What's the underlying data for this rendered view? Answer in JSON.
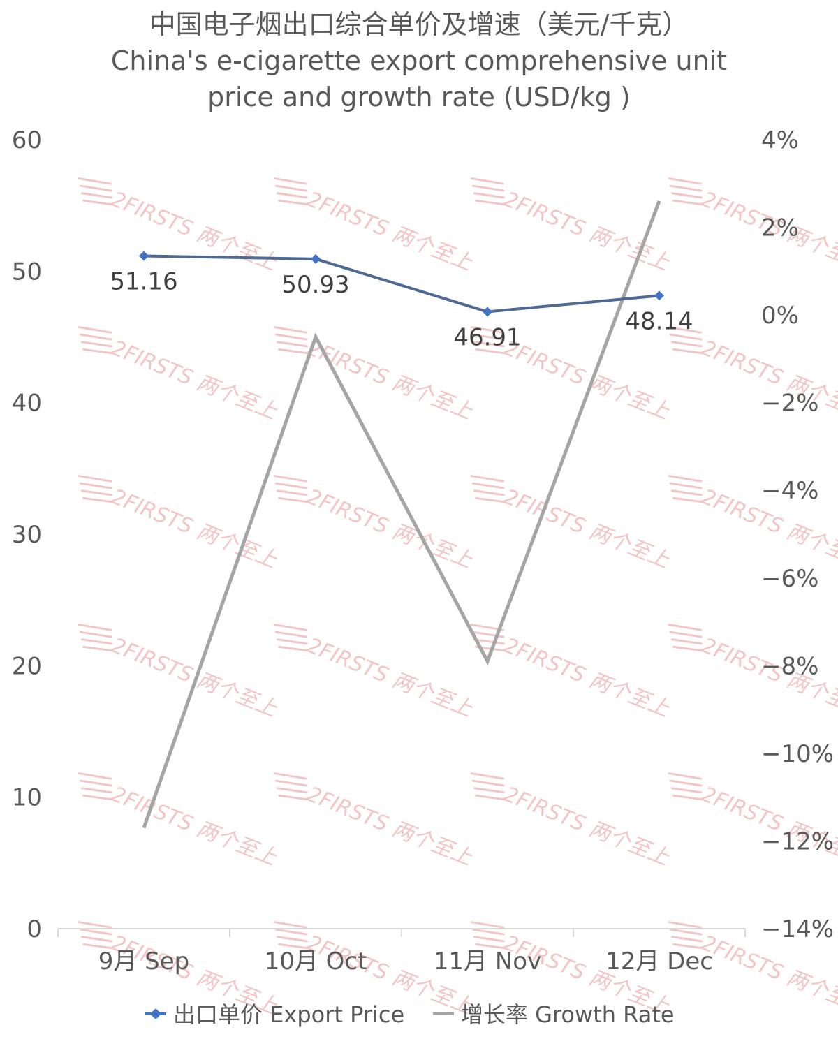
{
  "chart_data": {
    "type": "line",
    "title": "中国电子烟出口综合单价及增速（美元/千克）",
    "subtitle": [
      "China's e-cigarette export comprehensive unit",
      "price and growth rate (USD/kg )"
    ],
    "categories": [
      "9月 Sep",
      "10月 Oct",
      "11月 Nov",
      "12月 Dec"
    ],
    "y_left": {
      "range": [
        0,
        60
      ],
      "ticks": [
        "0",
        "10",
        "20",
        "30",
        "40",
        "50",
        "60"
      ]
    },
    "y_right": {
      "range": [
        -14,
        4
      ],
      "ticks": [
        "-14%",
        "-12%",
        "-10%",
        "-8%",
        "-6%",
        "-4%",
        "-2%",
        "0%",
        "2%",
        "4%"
      ]
    },
    "series": [
      {
        "name": "出口单价 Export Price",
        "axis": "left",
        "values": [
          51.16,
          50.93,
          46.91,
          48.14
        ],
        "labels": [
          "51.16",
          "50.93",
          "46.91",
          "48.14"
        ],
        "color": "#4e6a94",
        "marker_color": "#4472c4"
      },
      {
        "name": "增长率 Growth Rate",
        "axis": "right",
        "values": [
          -11.7,
          -0.5,
          -7.9,
          2.6
        ],
        "color": "#a5a5a5"
      }
    ],
    "legend_position": "bottom",
    "grid": false
  },
  "watermark": {
    "text": "2FIRSTS 两个至上",
    "color": "#f2c6c6"
  }
}
